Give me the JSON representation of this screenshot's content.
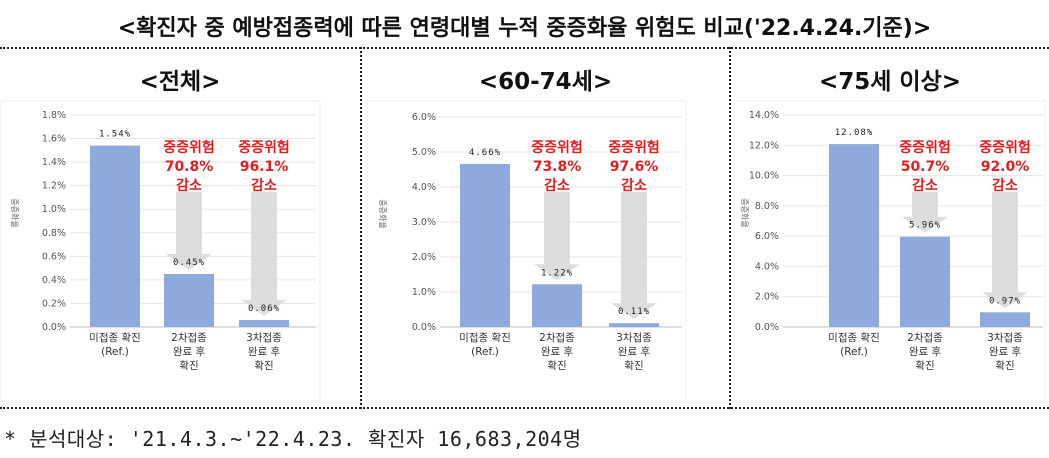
{
  "title": "<확진자 중 예방접종력에 따른 연령대별 누적 중증화율 위험도 비교('22.4.24.기준)>",
  "footnote": "* 분석대상: '21.4.3.~'22.4.23. 확진자 16,683,204명",
  "colors": {
    "bar": "#8EA9DB",
    "arrow": "#D9D9D9",
    "red": "#E02020",
    "grid": "#E6E6E6"
  },
  "chart_data": [
    {
      "type": "bar",
      "panel_title": "<전체>",
      "ylabel": "중증화율",
      "ylim": [
        0,
        1.8
      ],
      "yticks": [
        "0.0%",
        "0.2%",
        "0.4%",
        "0.6%",
        "0.8%",
        "1.0%",
        "1.2%",
        "1.4%",
        "1.6%",
        "1.8%"
      ],
      "categories": [
        [
          "미접종 확진",
          "(Ref.)"
        ],
        [
          "2차접종",
          "완료 후",
          "확진"
        ],
        [
          "3차접종",
          "완료 후",
          "확진"
        ]
      ],
      "values": [
        1.54,
        0.45,
        0.06
      ],
      "value_labels": [
        "1.54%",
        "0.45%",
        "0.06%"
      ],
      "annotations": [
        {
          "lines": [
            "중증위험",
            "70.8%",
            "감소"
          ]
        },
        {
          "lines": [
            "중증위험",
            "96.1%",
            "감소"
          ]
        }
      ]
    },
    {
      "type": "bar",
      "panel_title": "<60-74세>",
      "ylabel": "중증화율",
      "ylim": [
        0,
        6.0
      ],
      "yticks": [
        "0.0%",
        "1.0%",
        "2.0%",
        "3.0%",
        "4.0%",
        "5.0%",
        "6.0%"
      ],
      "categories": [
        [
          "미접종 확진",
          "(Ref.)"
        ],
        [
          "2차접종",
          "완료 후",
          "확진"
        ],
        [
          "3차접종",
          "완료 후",
          "확진"
        ]
      ],
      "values": [
        4.66,
        1.22,
        0.11
      ],
      "value_labels": [
        "4.66%",
        "1.22%",
        "0.11%"
      ],
      "annotations": [
        {
          "lines": [
            "중증위험",
            "73.8%",
            "감소"
          ]
        },
        {
          "lines": [
            "중증위험",
            "97.6%",
            "감소"
          ]
        }
      ]
    },
    {
      "type": "bar",
      "panel_title": "<75세 이상>",
      "ylabel": "중증화율",
      "ylim": [
        0,
        14.0
      ],
      "yticks": [
        "0.0%",
        "2.0%",
        "4.0%",
        "6.0%",
        "8.0%",
        "10.0%",
        "12.0%",
        "14.0%"
      ],
      "categories": [
        [
          "미접종 확진",
          "(Ref.)"
        ],
        [
          "2차접종",
          "완료 후",
          "확진"
        ],
        [
          "3차접종",
          "완료 후",
          "확진"
        ]
      ],
      "values": [
        12.08,
        5.96,
        0.97
      ],
      "value_labels": [
        "12.08%",
        "5.96%",
        "0.97%"
      ],
      "annotations": [
        {
          "lines": [
            "중증위험",
            "50.7%",
            "감소"
          ]
        },
        {
          "lines": [
            "중증위험",
            "92.0%",
            "감소"
          ]
        }
      ]
    }
  ]
}
